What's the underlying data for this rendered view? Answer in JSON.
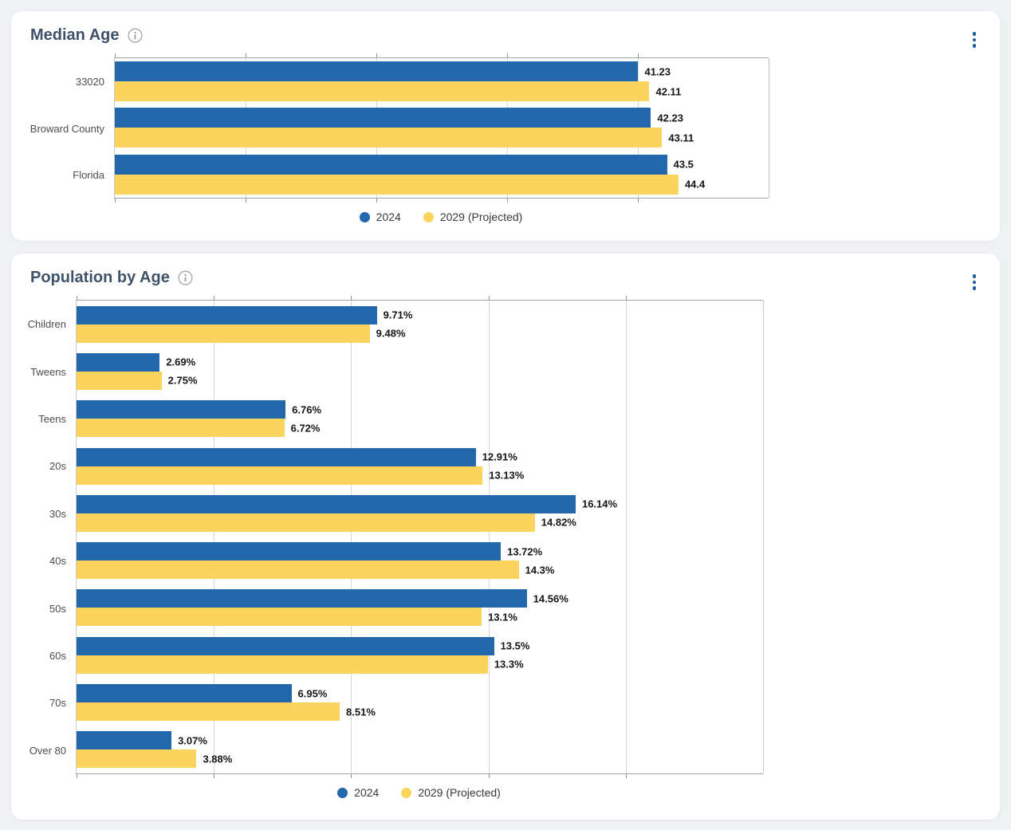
{
  "colors": {
    "series_2024": "#2368AC",
    "series_2029": "#FBD45E",
    "card_title": "#3e5268",
    "kebab_dots": "#1f5c9c",
    "page_background": "#f0f1f4"
  },
  "cards": [
    {
      "title": "Median Age",
      "info_icon": "info-tooltip",
      "menu_icon": "kebab-menu"
    },
    {
      "title": "Population by Age",
      "info_icon": "info-tooltip",
      "menu_icon": "kebab-menu"
    }
  ],
  "chart_data": [
    {
      "type": "bar",
      "orientation": "horizontal",
      "title": "Median Age",
      "categories": [
        "33020",
        "Broward County",
        "Florida"
      ],
      "series": [
        {
          "name": "2024",
          "color": "#2368AC",
          "values": [
            41.23,
            42.23,
            43.5
          ],
          "labels": [
            "41.23",
            "42.23",
            "43.5"
          ]
        },
        {
          "name": "2029 (Projected)",
          "color": "#FBD45E",
          "values": [
            42.11,
            43.11,
            44.4
          ],
          "labels": [
            "42.11",
            "43.11",
            "44.4"
          ]
        }
      ],
      "xlabel": "",
      "ylabel": "",
      "xlim": [
        0,
        51.5
      ],
      "grid": "vertical gridlines, 5 equal unlabeled intervals, ticks top and bottom",
      "value_labels": "end of each bar",
      "legend_position": "bottom-center"
    },
    {
      "type": "bar",
      "orientation": "horizontal",
      "title": "Population by Age",
      "categories": [
        "Children",
        "Tweens",
        "Teens",
        "20s",
        "30s",
        "40s",
        "50s",
        "60s",
        "70s",
        "Over 80"
      ],
      "series": [
        {
          "name": "2024",
          "color": "#2368AC",
          "values": [
            9.71,
            2.69,
            6.76,
            12.91,
            16.14,
            13.72,
            14.56,
            13.5,
            6.95,
            3.07
          ],
          "labels": [
            "9.71%",
            "2.69%",
            "6.76%",
            "12.91%",
            "16.14%",
            "13.72%",
            "14.56%",
            "13.5%",
            "6.95%",
            "3.07%"
          ]
        },
        {
          "name": "2029 (Projected)",
          "color": "#FBD45E",
          "values": [
            9.48,
            2.75,
            6.72,
            13.13,
            14.82,
            14.3,
            13.1,
            13.3,
            8.51,
            3.88
          ],
          "labels": [
            "9.48%",
            "2.75%",
            "6.72%",
            "13.13%",
            "14.82%",
            "14.3%",
            "13.1%",
            "13.3%",
            "8.51%",
            "3.88%"
          ]
        }
      ],
      "xlabel": "",
      "ylabel": "",
      "xlim": [
        0,
        22.2
      ],
      "grid": "vertical gridlines, 5 equal unlabeled intervals, ticks top and bottom",
      "value_labels": "end of each bar",
      "legend_position": "bottom-center"
    }
  ]
}
